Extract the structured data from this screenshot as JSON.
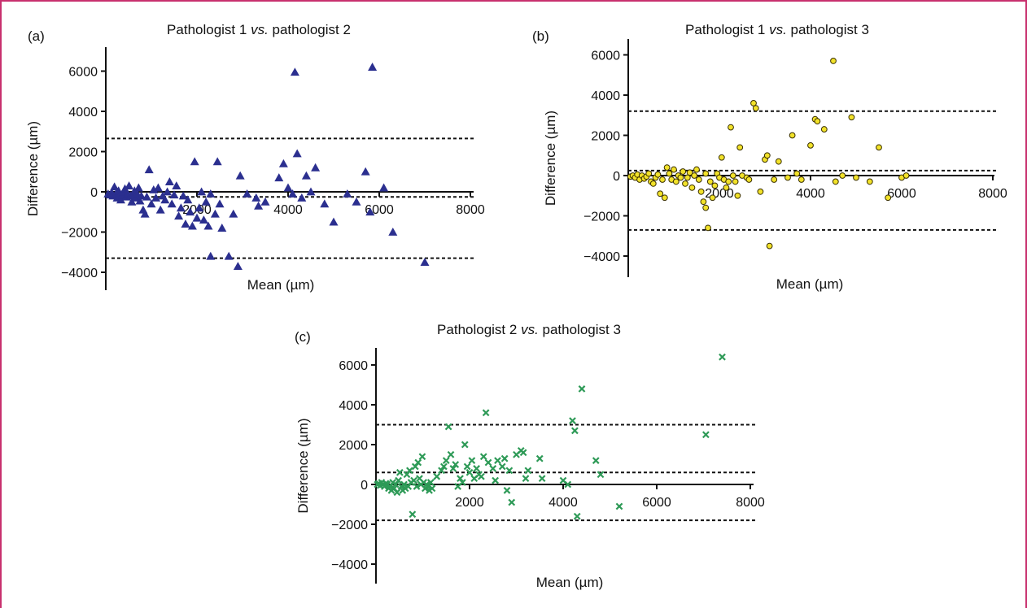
{
  "colors": {
    "frame": "#c8306e",
    "series_a": "#2b2f8f",
    "series_b": "#f2e22a",
    "series_b_edge": "#3a3000",
    "series_c": "#2e9a57"
  },
  "chart_data": [
    {
      "panel": "(a)",
      "type": "scatter",
      "title_main": "Pathologist 1",
      "title_vs": "vs.",
      "title_rest": "pathologist 2",
      "xlabel": "Mean (µm)",
      "ylabel": "Difference (µm)",
      "xlim": [
        0,
        8000
      ],
      "ylim": [
        -5000,
        7000
      ],
      "xticks": [
        2000,
        4000,
        6000,
        8000
      ],
      "yticks": [
        -4000,
        -2000,
        0,
        2000,
        4000,
        6000
      ],
      "marker": "triangle",
      "bias_line": -250,
      "loa_lines": [
        2650,
        -3300
      ],
      "points": [
        [
          50,
          -100
        ],
        [
          100,
          -150
        ],
        [
          130,
          -50
        ],
        [
          160,
          -200
        ],
        [
          190,
          250
        ],
        [
          220,
          -100
        ],
        [
          250,
          -300
        ],
        [
          280,
          50
        ],
        [
          300,
          -200
        ],
        [
          330,
          -400
        ],
        [
          360,
          -150
        ],
        [
          390,
          0
        ],
        [
          420,
          150
        ],
        [
          450,
          -250
        ],
        [
          480,
          -100
        ],
        [
          510,
          300
        ],
        [
          540,
          -200
        ],
        [
          570,
          -500
        ],
        [
          600,
          -150
        ],
        [
          630,
          50
        ],
        [
          660,
          -300
        ],
        [
          690,
          -100
        ],
        [
          720,
          200
        ],
        [
          750,
          -450
        ],
        [
          780,
          -200
        ],
        [
          820,
          -900
        ],
        [
          860,
          -1100
        ],
        [
          900,
          -250
        ],
        [
          950,
          1100
        ],
        [
          1000,
          -600
        ],
        [
          1050,
          100
        ],
        [
          1100,
          -300
        ],
        [
          1150,
          200
        ],
        [
          1200,
          -900
        ],
        [
          1250,
          -200
        ],
        [
          1300,
          -400
        ],
        [
          1350,
          0
        ],
        [
          1400,
          500
        ],
        [
          1450,
          -600
        ],
        [
          1500,
          -150
        ],
        [
          1550,
          300
        ],
        [
          1600,
          -1200
        ],
        [
          1650,
          -800
        ],
        [
          1700,
          -200
        ],
        [
          1750,
          -1600
        ],
        [
          1800,
          -400
        ],
        [
          1850,
          -1000
        ],
        [
          1900,
          -1700
        ],
        [
          1950,
          1500
        ],
        [
          2000,
          -1300
        ],
        [
          2050,
          -800
        ],
        [
          2100,
          0
        ],
        [
          2150,
          -1400
        ],
        [
          2200,
          -500
        ],
        [
          2250,
          -1700
        ],
        [
          2300,
          -100
        ],
        [
          2400,
          -1100
        ],
        [
          2450,
          1500
        ],
        [
          2500,
          -600
        ],
        [
          2550,
          -1800
        ],
        [
          2300,
          -3200
        ],
        [
          2700,
          -3200
        ],
        [
          2900,
          -3700
        ],
        [
          2800,
          -1100
        ],
        [
          2950,
          800
        ],
        [
          3100,
          -100
        ],
        [
          3300,
          -300
        ],
        [
          3350,
          -700
        ],
        [
          3500,
          -500
        ],
        [
          3800,
          700
        ],
        [
          3900,
          1400
        ],
        [
          4000,
          200
        ],
        [
          4100,
          -100
        ],
        [
          4150,
          5950
        ],
        [
          4200,
          1900
        ],
        [
          4300,
          -300
        ],
        [
          4400,
          800
        ],
        [
          4500,
          0
        ],
        [
          4600,
          1200
        ],
        [
          4800,
          -600
        ],
        [
          5000,
          -1500
        ],
        [
          5300,
          -100
        ],
        [
          5500,
          -500
        ],
        [
          5700,
          1000
        ],
        [
          5800,
          -1000
        ],
        [
          5850,
          6200
        ],
        [
          6100,
          200
        ],
        [
          6300,
          -2000
        ],
        [
          7000,
          -3500
        ]
      ]
    },
    {
      "panel": "(b)",
      "type": "scatter",
      "title_main": "Pathologist 1",
      "title_vs": "vs.",
      "title_rest": "pathologist 3",
      "xlabel": "Mean (µm)",
      "ylabel": "Difference (µm)",
      "xlim": [
        0,
        8000
      ],
      "ylim": [
        -5000,
        7000
      ],
      "xticks": [
        2000,
        4000,
        6000,
        8000
      ],
      "yticks": [
        -4000,
        -2000,
        0,
        2000,
        4000,
        6000
      ],
      "marker": "circle",
      "bias_line": 250,
      "loa_lines": [
        3200,
        -2700
      ],
      "points": [
        [
          50,
          -50
        ],
        [
          100,
          0
        ],
        [
          150,
          -100
        ],
        [
          200,
          50
        ],
        [
          250,
          -200
        ],
        [
          300,
          0
        ],
        [
          350,
          -150
        ],
        [
          400,
          -50
        ],
        [
          450,
          100
        ],
        [
          500,
          -300
        ],
        [
          550,
          -400
        ],
        [
          600,
          -100
        ],
        [
          650,
          50
        ],
        [
          700,
          -900
        ],
        [
          750,
          -200
        ],
        [
          800,
          -1100
        ],
        [
          850,
          400
        ],
        [
          900,
          100
        ],
        [
          950,
          -200
        ],
        [
          1000,
          300
        ],
        [
          1050,
          -300
        ],
        [
          1100,
          0
        ],
        [
          1150,
          -100
        ],
        [
          1200,
          200
        ],
        [
          1250,
          -400
        ],
        [
          1300,
          -100
        ],
        [
          1350,
          150
        ],
        [
          1400,
          -600
        ],
        [
          1450,
          0
        ],
        [
          1500,
          300
        ],
        [
          1550,
          -200
        ],
        [
          1600,
          -800
        ],
        [
          1650,
          -1300
        ],
        [
          1700,
          -1600
        ],
        [
          1750,
          -2600
        ],
        [
          1700,
          100
        ],
        [
          1800,
          -300
        ],
        [
          1850,
          -1100
        ],
        [
          1900,
          -500
        ],
        [
          1950,
          100
        ],
        [
          2000,
          -100
        ],
        [
          2050,
          900
        ],
        [
          2100,
          -200
        ],
        [
          2150,
          -600
        ],
        [
          2200,
          -300
        ],
        [
          2250,
          2400
        ],
        [
          2300,
          0
        ],
        [
          2350,
          -300
        ],
        [
          2400,
          -1000
        ],
        [
          2450,
          1400
        ],
        [
          2500,
          0
        ],
        [
          2600,
          -100
        ],
        [
          2650,
          -200
        ],
        [
          2750,
          3600
        ],
        [
          2800,
          3350
        ],
        [
          2900,
          -800
        ],
        [
          3000,
          800
        ],
        [
          3050,
          1000
        ],
        [
          3100,
          -3500
        ],
        [
          3200,
          -200
        ],
        [
          3300,
          700
        ],
        [
          3500,
          -100
        ],
        [
          3600,
          2000
        ],
        [
          3700,
          100
        ],
        [
          3800,
          -200
        ],
        [
          4000,
          1500
        ],
        [
          4100,
          2800
        ],
        [
          4150,
          2700
        ],
        [
          4300,
          2300
        ],
        [
          4500,
          5700
        ],
        [
          4550,
          -300
        ],
        [
          4700,
          0
        ],
        [
          4900,
          2900
        ],
        [
          5000,
          -100
        ],
        [
          5300,
          -300
        ],
        [
          5500,
          1400
        ],
        [
          5700,
          -1100
        ],
        [
          6000,
          -100
        ],
        [
          6100,
          0
        ]
      ]
    },
    {
      "panel": "(c)",
      "type": "scatter",
      "title_main": "Pathologist 2",
      "title_vs": "vs.",
      "title_rest": "pathologist 3",
      "xlabel": "Mean (µm)",
      "ylabel": "Difference (µm)",
      "xlim": [
        0,
        8000
      ],
      "ylim": [
        -5000,
        7000
      ],
      "xticks": [
        2000,
        4000,
        6000,
        8000
      ],
      "yticks": [
        -4000,
        -2000,
        0,
        2000,
        4000,
        6000
      ],
      "marker": "cross",
      "bias_line": 600,
      "loa_lines": [
        3000,
        -1800
      ],
      "points": [
        [
          30,
          0
        ],
        [
          60,
          50
        ],
        [
          90,
          -50
        ],
        [
          120,
          100
        ],
        [
          150,
          0
        ],
        [
          180,
          -100
        ],
        [
          210,
          50
        ],
        [
          240,
          0
        ],
        [
          270,
          -200
        ],
        [
          300,
          -100
        ],
        [
          330,
          -300
        ],
        [
          360,
          100
        ],
        [
          390,
          -200
        ],
        [
          420,
          0
        ],
        [
          450,
          -400
        ],
        [
          480,
          200
        ],
        [
          510,
          600
        ],
        [
          540,
          -100
        ],
        [
          570,
          -300
        ],
        [
          600,
          0
        ],
        [
          630,
          -200
        ],
        [
          660,
          500
        ],
        [
          690,
          -100
        ],
        [
          720,
          700
        ],
        [
          750,
          100
        ],
        [
          780,
          -1500
        ],
        [
          810,
          200
        ],
        [
          840,
          900
        ],
        [
          870,
          -100
        ],
        [
          900,
          1100
        ],
        [
          930,
          300
        ],
        [
          960,
          0
        ],
        [
          990,
          1400
        ],
        [
          1020,
          100
        ],
        [
          1050,
          -200
        ],
        [
          1080,
          0
        ],
        [
          1110,
          -100
        ],
        [
          1140,
          -300
        ],
        [
          1170,
          100
        ],
        [
          1200,
          -200
        ],
        [
          1300,
          400
        ],
        [
          1400,
          700
        ],
        [
          1450,
          900
        ],
        [
          1500,
          1200
        ],
        [
          1550,
          2900
        ],
        [
          1600,
          1500
        ],
        [
          1650,
          800
        ],
        [
          1700,
          1000
        ],
        [
          1750,
          -100
        ],
        [
          1800,
          300
        ],
        [
          1850,
          100
        ],
        [
          1900,
          2000
        ],
        [
          1950,
          900
        ],
        [
          2000,
          600
        ],
        [
          2050,
          1200
        ],
        [
          2100,
          300
        ],
        [
          2150,
          800
        ],
        [
          2200,
          500
        ],
        [
          2250,
          400
        ],
        [
          2300,
          1400
        ],
        [
          2350,
          3600
        ],
        [
          2400,
          1100
        ],
        [
          2500,
          800
        ],
        [
          2550,
          200
        ],
        [
          2600,
          1200
        ],
        [
          2700,
          900
        ],
        [
          2750,
          1300
        ],
        [
          2800,
          -300
        ],
        [
          2850,
          700
        ],
        [
          2900,
          -900
        ],
        [
          3000,
          1500
        ],
        [
          3100,
          1700
        ],
        [
          3150,
          1600
        ],
        [
          3200,
          300
        ],
        [
          3250,
          700
        ],
        [
          3500,
          1300
        ],
        [
          3550,
          300
        ],
        [
          4000,
          200
        ],
        [
          4100,
          0
        ],
        [
          4200,
          3200
        ],
        [
          4250,
          2700
        ],
        [
          4300,
          -1600
        ],
        [
          4400,
          4800
        ],
        [
          4700,
          1200
        ],
        [
          4800,
          500
        ],
        [
          5200,
          -1100
        ],
        [
          7050,
          2500
        ],
        [
          7400,
          6400
        ]
      ]
    }
  ]
}
